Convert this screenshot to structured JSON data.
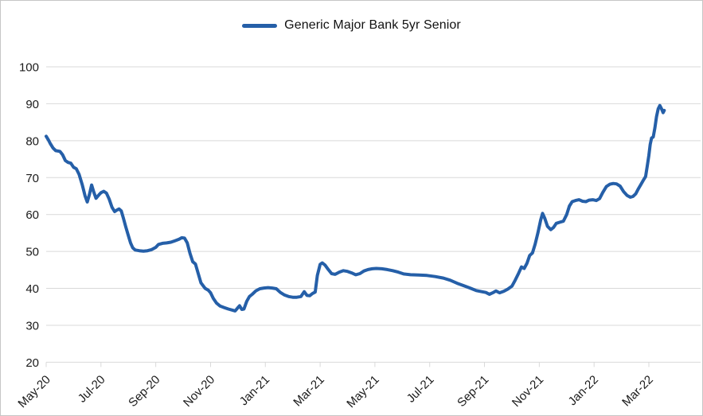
{
  "legend": {
    "label": "Generic Major Bank 5yr Senior"
  },
  "colors": {
    "line": "#255FA8",
    "grid": "#D9D9D9",
    "axis": "#D9D9D9",
    "text": "#1A1A1A",
    "border": "#C6C6C6",
    "background": "#FFFFFF"
  },
  "chart_data": {
    "type": "line",
    "title": "",
    "xlabel": "",
    "ylabel": "",
    "ylim": [
      20,
      100
    ],
    "y_ticks": [
      100,
      90,
      80,
      70,
      60,
      50,
      40,
      30,
      20
    ],
    "x_tick_labels": [
      "May-20",
      "Jul-20",
      "Sep-20",
      "Nov-20",
      "Jan-21",
      "Mar-21",
      "May-21",
      "Jul-21",
      "Sep-21",
      "Nov-21",
      "Jan-22",
      "Mar-22"
    ],
    "months_per_x_tick": 2,
    "grid": "horizontal",
    "legend_position": "top-center",
    "series": [
      {
        "name": "Generic Major Bank 5yr Senior",
        "x_unit": "months since May-20",
        "points": [
          [
            0.0,
            81.2
          ],
          [
            0.08,
            80.2
          ],
          [
            0.15,
            79.2
          ],
          [
            0.25,
            78.0
          ],
          [
            0.35,
            77.3
          ],
          [
            0.5,
            77.1
          ],
          [
            0.6,
            76.2
          ],
          [
            0.7,
            74.6
          ],
          [
            0.8,
            74.1
          ],
          [
            0.9,
            73.9
          ],
          [
            1.0,
            72.8
          ],
          [
            1.1,
            72.4
          ],
          [
            1.2,
            70.9
          ],
          [
            1.32,
            68.0
          ],
          [
            1.42,
            65.0
          ],
          [
            1.5,
            63.4
          ],
          [
            1.58,
            65.5
          ],
          [
            1.66,
            68.0
          ],
          [
            1.74,
            66.0
          ],
          [
            1.82,
            64.4
          ],
          [
            1.92,
            65.3
          ],
          [
            2.0,
            65.9
          ],
          [
            2.1,
            66.3
          ],
          [
            2.2,
            65.8
          ],
          [
            2.3,
            64.2
          ],
          [
            2.4,
            62.0
          ],
          [
            2.5,
            60.8
          ],
          [
            2.58,
            61.2
          ],
          [
            2.66,
            61.5
          ],
          [
            2.74,
            61.0
          ],
          [
            2.82,
            59.0
          ],
          [
            2.9,
            56.8
          ],
          [
            3.0,
            54.3
          ],
          [
            3.08,
            52.3
          ],
          [
            3.16,
            51.0
          ],
          [
            3.25,
            50.4
          ],
          [
            3.4,
            50.2
          ],
          [
            3.55,
            50.1
          ],
          [
            3.7,
            50.2
          ],
          [
            3.85,
            50.5
          ],
          [
            4.0,
            51.1
          ],
          [
            4.1,
            51.9
          ],
          [
            4.25,
            52.2
          ],
          [
            4.4,
            52.3
          ],
          [
            4.55,
            52.5
          ],
          [
            4.7,
            52.9
          ],
          [
            4.85,
            53.3
          ],
          [
            4.95,
            53.7
          ],
          [
            5.05,
            53.6
          ],
          [
            5.15,
            52.3
          ],
          [
            5.25,
            49.5
          ],
          [
            5.35,
            47.2
          ],
          [
            5.45,
            46.6
          ],
          [
            5.55,
            44.0
          ],
          [
            5.65,
            41.5
          ],
          [
            5.8,
            40.0
          ],
          [
            5.92,
            39.5
          ],
          [
            6.0,
            38.8
          ],
          [
            6.1,
            37.3
          ],
          [
            6.22,
            36.0
          ],
          [
            6.35,
            35.2
          ],
          [
            6.5,
            34.8
          ],
          [
            6.65,
            34.4
          ],
          [
            6.8,
            34.1
          ],
          [
            6.9,
            33.9
          ],
          [
            7.0,
            34.8
          ],
          [
            7.06,
            35.3
          ],
          [
            7.14,
            34.3
          ],
          [
            7.22,
            34.4
          ],
          [
            7.32,
            36.5
          ],
          [
            7.42,
            37.8
          ],
          [
            7.52,
            38.4
          ],
          [
            7.65,
            39.3
          ],
          [
            7.8,
            39.9
          ],
          [
            7.95,
            40.1
          ],
          [
            8.1,
            40.2
          ],
          [
            8.25,
            40.1
          ],
          [
            8.4,
            39.9
          ],
          [
            8.55,
            38.9
          ],
          [
            8.7,
            38.2
          ],
          [
            8.85,
            37.8
          ],
          [
            9.0,
            37.6
          ],
          [
            9.15,
            37.6
          ],
          [
            9.3,
            37.8
          ],
          [
            9.42,
            39.1
          ],
          [
            9.52,
            38.1
          ],
          [
            9.62,
            38.0
          ],
          [
            9.72,
            38.6
          ],
          [
            9.82,
            39.0
          ],
          [
            9.9,
            43.5
          ],
          [
            10.0,
            46.5
          ],
          [
            10.08,
            46.9
          ],
          [
            10.18,
            46.3
          ],
          [
            10.3,
            45.1
          ],
          [
            10.42,
            44.0
          ],
          [
            10.55,
            43.8
          ],
          [
            10.7,
            44.4
          ],
          [
            10.85,
            44.8
          ],
          [
            11.0,
            44.6
          ],
          [
            11.15,
            44.2
          ],
          [
            11.3,
            43.7
          ],
          [
            11.45,
            44.0
          ],
          [
            11.6,
            44.7
          ],
          [
            11.75,
            45.1
          ],
          [
            11.9,
            45.3
          ],
          [
            12.05,
            45.4
          ],
          [
            12.25,
            45.3
          ],
          [
            12.45,
            45.1
          ],
          [
            12.65,
            44.8
          ],
          [
            12.85,
            44.4
          ],
          [
            13.05,
            43.9
          ],
          [
            13.3,
            43.7
          ],
          [
            13.6,
            43.6
          ],
          [
            13.9,
            43.5
          ],
          [
            14.2,
            43.2
          ],
          [
            14.5,
            42.8
          ],
          [
            14.75,
            42.2
          ],
          [
            15.0,
            41.4
          ],
          [
            15.25,
            40.7
          ],
          [
            15.5,
            40.0
          ],
          [
            15.7,
            39.4
          ],
          [
            15.9,
            39.1
          ],
          [
            16.05,
            38.9
          ],
          [
            16.18,
            38.4
          ],
          [
            16.3,
            38.8
          ],
          [
            16.42,
            39.3
          ],
          [
            16.55,
            38.8
          ],
          [
            16.7,
            39.2
          ],
          [
            16.85,
            39.8
          ],
          [
            17.0,
            40.6
          ],
          [
            17.12,
            42.2
          ],
          [
            17.25,
            44.2
          ],
          [
            17.35,
            45.8
          ],
          [
            17.45,
            45.4
          ],
          [
            17.55,
            46.8
          ],
          [
            17.65,
            48.9
          ],
          [
            17.75,
            49.6
          ],
          [
            17.85,
            52.0
          ],
          [
            17.95,
            55.0
          ],
          [
            18.05,
            58.5
          ],
          [
            18.12,
            60.3
          ],
          [
            18.2,
            59.0
          ],
          [
            18.3,
            56.8
          ],
          [
            18.42,
            55.9
          ],
          [
            18.52,
            56.5
          ],
          [
            18.62,
            57.6
          ],
          [
            18.75,
            57.9
          ],
          [
            18.88,
            58.2
          ],
          [
            19.0,
            60.0
          ],
          [
            19.1,
            62.3
          ],
          [
            19.2,
            63.5
          ],
          [
            19.32,
            63.8
          ],
          [
            19.45,
            64.0
          ],
          [
            19.58,
            63.6
          ],
          [
            19.7,
            63.5
          ],
          [
            19.82,
            63.9
          ],
          [
            19.95,
            64.0
          ],
          [
            20.08,
            63.8
          ],
          [
            20.2,
            64.3
          ],
          [
            20.32,
            66.0
          ],
          [
            20.45,
            67.6
          ],
          [
            20.58,
            68.2
          ],
          [
            20.7,
            68.4
          ],
          [
            20.82,
            68.3
          ],
          [
            20.95,
            67.7
          ],
          [
            21.08,
            66.2
          ],
          [
            21.2,
            65.2
          ],
          [
            21.32,
            64.7
          ],
          [
            21.42,
            64.9
          ],
          [
            21.52,
            65.6
          ],
          [
            21.62,
            67.0
          ],
          [
            21.72,
            68.3
          ],
          [
            21.8,
            69.3
          ],
          [
            21.88,
            70.3
          ],
          [
            21.94,
            73.0
          ],
          [
            22.0,
            76.0
          ],
          [
            22.05,
            79.0
          ],
          [
            22.1,
            80.7
          ],
          [
            22.16,
            81.0
          ],
          [
            22.22,
            83.5
          ],
          [
            22.28,
            86.5
          ],
          [
            22.34,
            88.6
          ],
          [
            22.4,
            89.5
          ],
          [
            22.46,
            88.7
          ],
          [
            22.52,
            87.6
          ],
          [
            22.56,
            88.2
          ]
        ]
      }
    ]
  }
}
